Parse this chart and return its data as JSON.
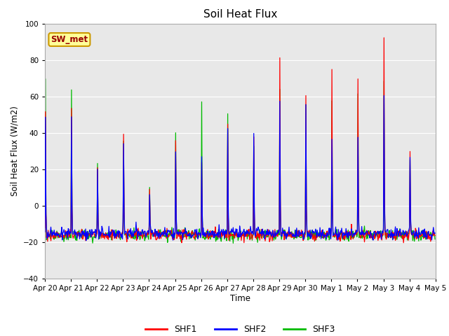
{
  "title": "Soil Heat Flux",
  "ylabel": "Soil Heat Flux (W/m2)",
  "xlabel": "Time",
  "ylim": [
    -40,
    100
  ],
  "background_color": "#ffffff",
  "plot_bg_color": "#e8e8e8",
  "grid_color": "#ffffff",
  "series_colors": [
    "#ff0000",
    "#0000ff",
    "#00bb00"
  ],
  "series_labels": [
    "SHF1",
    "SHF2",
    "SHF3"
  ],
  "site_label": "SW_met",
  "xtick_labels": [
    "Apr 20",
    "Apr 21",
    "Apr 22",
    "Apr 23",
    "Apr 24",
    "Apr 25",
    "Apr 26",
    "Apr 27",
    "Apr 28",
    "Apr 29",
    "Apr 30",
    "May 1",
    "May 2",
    "May 3",
    "May 4",
    "May 5"
  ],
  "legend_box_color": "#ffff99",
  "legend_box_edge": "#cc9900",
  "site_label_color": "#990000"
}
